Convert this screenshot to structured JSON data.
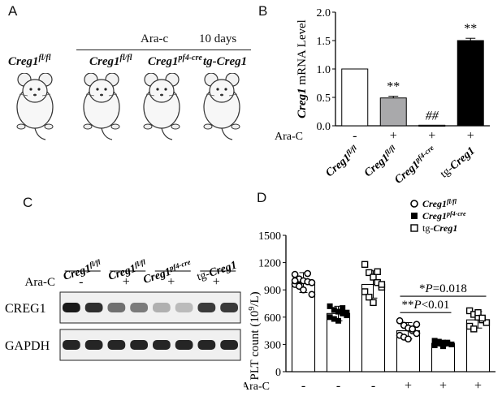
{
  "panelA": {
    "letter": "A",
    "treatment_label": "Ara-c",
    "duration_label": "10 days",
    "mice": [
      {
        "base": "Creg1",
        "sup": "fl/fl",
        "prefix": ""
      },
      {
        "base": "Creg1",
        "sup": "fl/fl",
        "prefix": ""
      },
      {
        "base": "Creg1",
        "sup": "pf4-cre",
        "prefix": ""
      },
      {
        "base": "Creg1",
        "sup": "",
        "prefix": "tg-"
      }
    ]
  },
  "panelB": {
    "letter": "B",
    "chart_data": {
      "type": "bar",
      "ylabel_italic": "Creg1",
      "ylabel_rest": " mRNA  Level",
      "ylim": [
        0,
        2.0
      ],
      "yticks": [
        "0.0",
        "0.5",
        "1.0",
        "1.5",
        "2.0"
      ],
      "treatment_label": "Ara-C",
      "treatment_signs": [
        "-",
        "+",
        "+",
        "+"
      ],
      "categories": [
        {
          "base": "Creg1",
          "sup": "fl/fl",
          "prefix": ""
        },
        {
          "base": "Creg1",
          "sup": "fl/fl",
          "prefix": ""
        },
        {
          "base": "Creg1",
          "sup": "pf4-cre",
          "prefix": ""
        },
        {
          "base": "Creg1",
          "sup": "",
          "prefix": "tg-"
        }
      ],
      "values": [
        1.0,
        0.49,
        0.01,
        1.5
      ],
      "errors": [
        0,
        0.03,
        0,
        0.04
      ],
      "colors": [
        "#ffffff",
        "#a9a9ab",
        "#6d6d6d",
        "#000000"
      ],
      "annotations": [
        "",
        "**",
        "##",
        "**"
      ]
    }
  },
  "panelC": {
    "letter": "C",
    "treatment_label": "Ara-C",
    "lanes": [
      {
        "base": "Creg1",
        "sup": "fl/fl",
        "prefix": ""
      },
      {
        "base": "Creg1",
        "sup": "fl/fl",
        "prefix": ""
      },
      {
        "base": "Creg1",
        "sup": "pf4-cre",
        "prefix": ""
      },
      {
        "base": "Creg1",
        "sup": "",
        "prefix": "tg-"
      }
    ],
    "signs": [
      "-",
      "+",
      "+",
      "+"
    ],
    "blots": [
      {
        "label": "CREG1",
        "intensities": [
          0.95,
          0.85,
          0.55,
          0.5,
          0.25,
          0.2,
          0.8,
          0.8
        ]
      },
      {
        "label": "GAPDH",
        "intensities": [
          0.9,
          0.9,
          0.9,
          0.9,
          0.9,
          0.9,
          0.9,
          0.9
        ]
      }
    ]
  },
  "panelD": {
    "letter": "D",
    "chart_data": {
      "type": "scatter",
      "ylabel": "PLT count (10",
      "ylabel_sup": "9",
      "ylabel_end": "/L)",
      "ylim": [
        0,
        1500
      ],
      "yticks": [
        "0",
        "300",
        "600",
        "900",
        "1200",
        "1500"
      ],
      "treatment_label": "Ara-C",
      "treatment_signs": [
        "-",
        "-",
        "-",
        "+",
        "+",
        "+"
      ],
      "legend": [
        {
          "symbol": "circle",
          "base": "Creg1",
          "sup": "fl/fl",
          "prefix": ""
        },
        {
          "symbol": "filled-square",
          "base": "Creg1",
          "sup": "pf4-cre",
          "prefix": ""
        },
        {
          "symbol": "square",
          "base": "Creg1",
          "sup": "",
          "prefix": "tg-"
        }
      ],
      "groups": [
        {
          "mean": 980,
          "sd": 110,
          "symbol": "circle",
          "points": [
            1070,
            1020,
            1000,
            990,
            980,
            960,
            940,
            900,
            1080,
            850,
            1000
          ]
        },
        {
          "mean": 640,
          "sd": 80,
          "symbol": "filled-square",
          "points": [
            720,
            680,
            660,
            640,
            620,
            600,
            580,
            560,
            700,
            650
          ]
        },
        {
          "mean": 960,
          "sd": 150,
          "symbol": "square",
          "points": [
            1180,
            1090,
            1040,
            980,
            930,
            880,
            820,
            760,
            1100,
            960
          ]
        },
        {
          "mean": 450,
          "sd": 90,
          "symbol": "circle",
          "points": [
            560,
            510,
            480,
            450,
            420,
            400,
            380,
            360,
            470,
            520
          ]
        },
        {
          "mean": 310,
          "sd": 30,
          "symbol": "filled-square",
          "points": [
            340,
            330,
            320,
            310,
            300,
            290,
            310,
            280,
            320
          ]
        },
        {
          "mean": 570,
          "sd": 90,
          "symbol": "square",
          "points": [
            670,
            630,
            600,
            570,
            540,
            500,
            470,
            650,
            590
          ]
        }
      ],
      "comparisons": [
        {
          "star": "*",
          "p_label": "P",
          "p_value": "=0.018"
        },
        {
          "star": "**",
          "p_label": "P",
          "p_value": "<0.01"
        }
      ]
    }
  }
}
